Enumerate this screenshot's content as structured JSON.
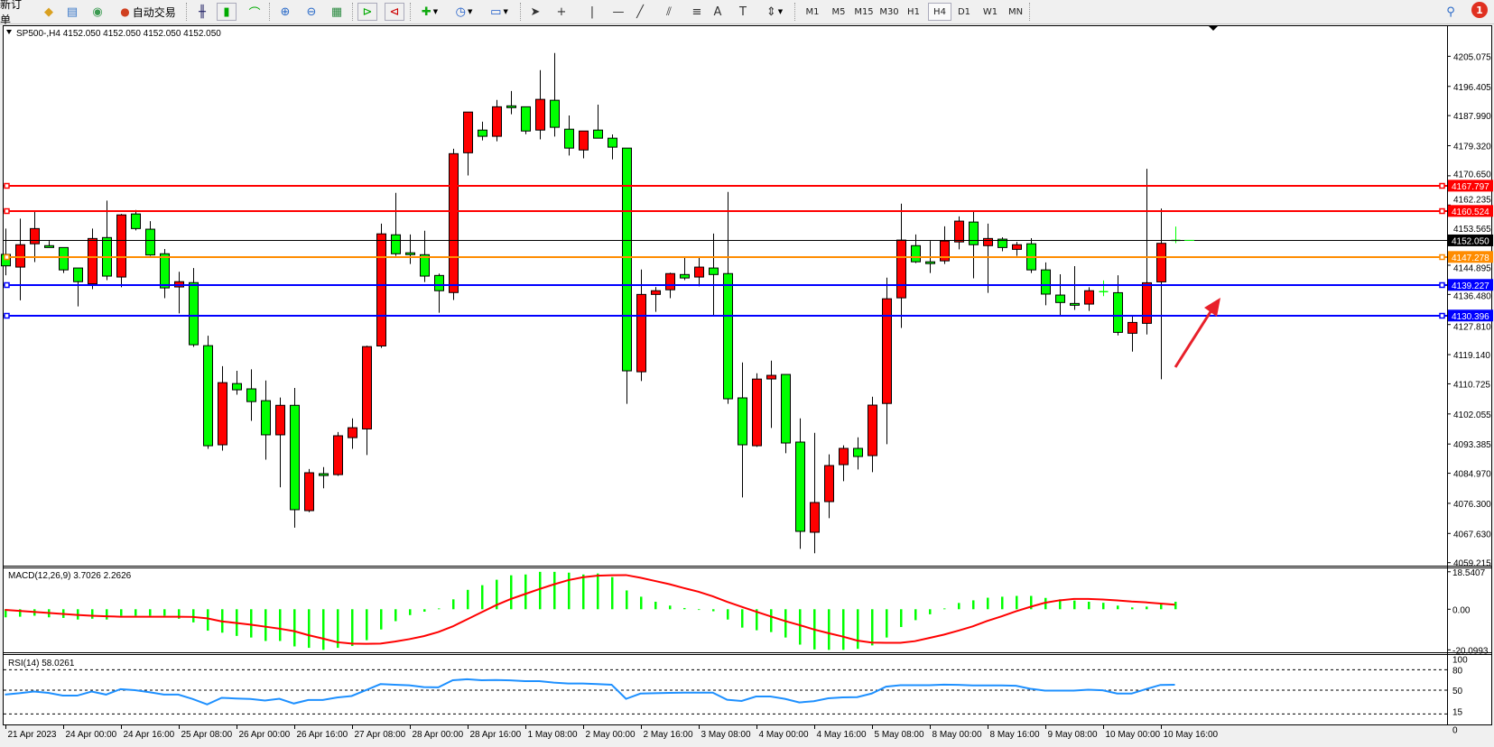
{
  "toolbar": {
    "new_order_label": "新订单",
    "auto_trading_label": "自动交易",
    "icons": [
      "new-order-icon",
      "market-watch-icon",
      "data-window-icon",
      "signals-icon",
      "auto-trading-icon",
      "bar-chart-icon",
      "candlestick-icon",
      "line-chart-icon",
      "zoom-in-icon",
      "zoom-out-icon",
      "tile-windows-icon",
      "auto-scroll-icon",
      "chart-shift-icon",
      "indicators-icon",
      "periods-icon",
      "templates-icon",
      "cursor-icon",
      "crosshair-icon",
      "vertical-line-icon",
      "horizontal-line-icon",
      "trendline-icon",
      "equidistant-channel-icon",
      "fibonacci-icon",
      "text-icon",
      "text-label-icon",
      "arrows-icon",
      "search-icon",
      "notification-icon"
    ],
    "timeframes": [
      "M1",
      "M5",
      "M15",
      "M30",
      "H1",
      "H4",
      "D1",
      "W1",
      "MN"
    ],
    "active_timeframe": "H4",
    "notification_count": "1"
  },
  "chart_title": "SP500-,H4  4152.050 4152.050 4152.050 4152.050",
  "colors": {
    "bull": "#ff0000",
    "bear": "#00ff00",
    "macd_hist": "#00ff00",
    "macd_signal": "#ff0000",
    "rsi": "#1e90ff",
    "resistance": "#ff0000",
    "pivot": "#ff8c00",
    "support": "#0000ff",
    "bid": "#000000",
    "arrow": "#e8202a"
  },
  "chart_data": {
    "type": "candlestick",
    "symbol": "SP500-",
    "timeframe": "H4",
    "ylim": [
      4059.215,
      4205.075
    ],
    "price_axis": {
      "ticks": [
        "4205.075",
        "4196.405",
        "4187.990",
        "4179.320",
        "4170.650",
        "4162.235",
        "4153.565",
        "4144.895",
        "4136.480",
        "4127.810",
        "4119.140",
        "4110.725",
        "4102.055",
        "4093.385",
        "4084.970",
        "4076.300",
        "4067.630",
        "4059.215"
      ]
    },
    "time_axis": {
      "labels": [
        "21 Apr 2023",
        "24 Apr 00:00",
        "24 Apr 16:00",
        "25 Apr 08:00",
        "26 Apr 00:00",
        "26 Apr 16:00",
        "27 Apr 08:00",
        "28 Apr 00:00",
        "28 Apr 16:00",
        "1 May 08:00",
        "2 May 00:00",
        "2 May 16:00",
        "3 May 08:00",
        "4 May 00:00",
        "4 May 16:00",
        "5 May 08:00",
        "8 May 00:00",
        "8 May 16:00",
        "9 May 08:00",
        "10 May 00:00",
        "10 May 16:00"
      ],
      "label_every_n_bars": 4
    },
    "ohlc_columns": [
      "open",
      "high",
      "low",
      "close"
    ],
    "candles": [
      [
        4148.02,
        4155.45,
        4142.0,
        4144.71
      ],
      [
        4144.35,
        4158.31,
        4134.78,
        4150.8
      ],
      [
        4151.07,
        4160.28,
        4145.79,
        4155.45
      ],
      [
        4150.53,
        4151.87,
        4149.99,
        4149.99
      ],
      [
        4149.99,
        4149.99,
        4142.65,
        4143.55
      ],
      [
        4144.09,
        4144.09,
        4133.03,
        4140.15
      ],
      [
        4139.52,
        4155.45,
        4138.0,
        4152.59
      ],
      [
        4152.86,
        4163.5,
        4140.6,
        4141.76
      ],
      [
        4141.49,
        4159.66,
        4138.54,
        4159.39
      ],
      [
        4159.66,
        4160.82,
        4154.91,
        4155.45
      ],
      [
        4155.27,
        4157.6,
        4147.58,
        4147.84
      ],
      [
        4148.2,
        4149.55,
        4135.41,
        4138.36
      ],
      [
        4138.63,
        4143.01,
        4131.02,
        4140.15
      ],
      [
        4139.88,
        4144.09,
        4121.36,
        4121.99
      ],
      [
        4121.72,
        4124.58,
        4092.01,
        4092.9
      ],
      [
        4093.17,
        4115.81,
        4091.47,
        4111.07
      ],
      [
        4110.8,
        4114.47,
        4107.58,
        4109.01
      ],
      [
        4109.28,
        4114.92,
        4100.06,
        4105.61
      ],
      [
        4105.88,
        4111.7,
        4088.88,
        4096.04
      ],
      [
        4096.04,
        4106.77,
        4080.91,
        4104.54
      ],
      [
        4104.54,
        4109.55,
        4069.3,
        4074.47
      ],
      [
        4074.2,
        4086.19,
        4073.75,
        4085.12
      ],
      [
        4084.85,
        4086.73,
        4080.64,
        4084.31
      ],
      [
        4084.58,
        4096.84,
        4084.22,
        4095.77
      ],
      [
        4095.23,
        4100.78,
        4092.01,
        4098.09
      ],
      [
        4097.73,
        4121.72,
        4090.22,
        4121.45
      ],
      [
        4121.63,
        4156.88,
        4121.09,
        4153.93
      ],
      [
        4153.66,
        4165.74,
        4147.58,
        4148.2
      ],
      [
        4148.47,
        4153.75,
        4145.25,
        4147.93
      ],
      [
        4147.93,
        4154.82,
        4140.06,
        4141.76
      ],
      [
        4141.94,
        4142.48,
        4131.2,
        4137.55
      ],
      [
        4137.02,
        4178.45,
        4134.87,
        4177.02
      ],
      [
        4177.28,
        4189.01,
        4170.75,
        4189.01
      ],
      [
        4183.82,
        4186.23,
        4180.86,
        4182.03
      ],
      [
        4182.03,
        4192.5,
        4180.59,
        4190.53
      ],
      [
        4190.8,
        4195.09,
        4188.38,
        4190.71
      ],
      [
        4190.53,
        4190.53,
        4182.65,
        4183.55
      ],
      [
        4183.82,
        4201.09,
        4181.13,
        4192.67
      ],
      [
        4192.41,
        4206.01,
        4181.94,
        4184.62
      ],
      [
        4184.08,
        4188.02,
        4176.48,
        4178.63
      ],
      [
        4178.09,
        4183.55,
        4175.67,
        4183.55
      ],
      [
        4183.82,
        4191.15,
        4181.49,
        4181.49
      ],
      [
        4181.49,
        4182.56,
        4175.4,
        4178.9
      ],
      [
        4178.63,
        4178.63,
        4104.98,
        4114.47
      ],
      [
        4114.2,
        4143.64,
        4111.52,
        4136.48
      ],
      [
        4136.48,
        4138.63,
        4131.47,
        4137.55
      ],
      [
        4137.82,
        4142.75,
        4135.41,
        4142.48
      ],
      [
        4142.21,
        4147.13,
        4140.6,
        4141.22
      ],
      [
        4141.49,
        4147.13,
        4138.81,
        4144.35
      ],
      [
        4144.09,
        4154.02,
        4130.58,
        4142.21
      ],
      [
        4142.48,
        4166.01,
        4104.98,
        4106.42
      ],
      [
        4106.68,
        4116.89,
        4078.01,
        4093.17
      ],
      [
        4092.9,
        4113.78,
        4092.56,
        4112.1
      ],
      [
        4112.13,
        4117.41,
        4098.02,
        4113.17
      ],
      [
        4113.43,
        4113.43,
        4090.74,
        4093.68
      ],
      [
        4093.95,
        4100.79,
        4063.2,
        4068.23
      ],
      [
        4067.97,
        4096.63,
        4061.91,
        4076.54
      ],
      [
        4076.8,
        4090.4,
        4072.04,
        4087.19
      ],
      [
        4087.45,
        4093.0,
        4082.69,
        4092.13
      ],
      [
        4092.13,
        4095.33,
        4086.07,
        4089.79
      ],
      [
        4090.05,
        4107.02,
        4085.29,
        4104.6
      ],
      [
        4105.07,
        4141.31,
        4093.34,
        4135.23
      ],
      [
        4135.5,
        4162.61,
        4126.82,
        4152.14
      ],
      [
        4150.53,
        4153.75,
        4145.52,
        4145.88
      ],
      [
        4145.88,
        4151.87,
        4142.65,
        4145.79
      ],
      [
        4146.15,
        4156.08,
        4145.25,
        4151.87
      ],
      [
        4151.6,
        4158.94,
        4149.46,
        4157.6
      ],
      [
        4157.33,
        4160.28,
        4141.13,
        4150.8
      ],
      [
        4150.53,
        4156.88,
        4136.93,
        4152.59
      ],
      [
        4152.41,
        4152.95,
        4148.92,
        4149.99
      ],
      [
        4149.46,
        4151.6,
        4147.58,
        4150.8
      ],
      [
        4151.07,
        4152.68,
        4142.65,
        4143.55
      ],
      [
        4143.55,
        4145.7,
        4133.35,
        4136.57
      ],
      [
        4136.3,
        4142.3,
        4130.58,
        4134.15
      ],
      [
        4133.88,
        4144.62,
        4132.01,
        4133.8
      ],
      [
        4133.7,
        4138.54,
        4131.74,
        4137.55
      ],
      [
        4137.28,
        4140.51,
        4136.0,
        4137.28
      ],
      [
        4136.98,
        4142.0,
        4124.68,
        4125.55
      ],
      [
        4125.29,
        4130.14,
        4120.01,
        4128.41
      ],
      [
        4128.15,
        4172.65,
        4124.94,
        4139.84
      ],
      [
        4140.1,
        4161.22,
        4112.04,
        4151.2
      ],
      [
        4152.05,
        4156.03,
        4151.26,
        4152.05
      ]
    ],
    "horizontal_lines": [
      {
        "price": 4167.797,
        "label": "4167.797",
        "kind": "resistance"
      },
      {
        "price": 4160.524,
        "label": "4160.524",
        "kind": "resistance"
      },
      {
        "price": 4152.05,
        "label": "4152.050",
        "kind": "bid"
      },
      {
        "price": 4147.278,
        "label": "4147.278",
        "kind": "pivot"
      },
      {
        "price": 4139.227,
        "label": "4139.227",
        "kind": "support"
      },
      {
        "price": 4130.396,
        "label": "4130.396",
        "kind": "support"
      }
    ],
    "macd": {
      "title": "MACD(12,26,9) 3.7026 2.2626",
      "axis_labels": [
        "18.5407",
        "0.00",
        "-20.0993"
      ],
      "ylim": [
        -20.0993,
        18.5407
      ],
      "main": [
        -4.0,
        -3.7,
        -3.2,
        -4.0,
        -4.3,
        -5.1,
        -4.7,
        -5.1,
        -3.2,
        -3.2,
        -3.2,
        -3.2,
        -4.7,
        -6.5,
        -10.6,
        -11.6,
        -13.2,
        -14.0,
        -15.7,
        -15.7,
        -18.4,
        -19.1,
        -20.1,
        -19.1,
        -18.2,
        -15.3,
        -10.0,
        -5.9,
        -2.9,
        -1.2,
        0.4,
        4.9,
        9.6,
        11.9,
        14.6,
        16.8,
        17.2,
        18.5,
        18.5,
        18.1,
        17.2,
        17.7,
        15.9,
        9.3,
        6.2,
        3.7,
        1.8,
        0.6,
        -0.2,
        -1.0,
        -5.1,
        -9.1,
        -10.4,
        -11.3,
        -14.0,
        -17.5,
        -19.9,
        -20.1,
        -20.1,
        -19.6,
        -17.9,
        -14.0,
        -8.8,
        -5.4,
        -2.5,
        0.4,
        3.1,
        4.4,
        5.7,
        6.2,
        6.6,
        6.6,
        5.6,
        4.9,
        4.3,
        3.7,
        3.2,
        1.8,
        0.9,
        1.3,
        2.9,
        3.7026
      ],
      "signal": [
        -0.3,
        -0.8,
        -1.3,
        -1.8,
        -2.3,
        -2.8,
        -3.2,
        -3.5,
        -3.7,
        -3.7,
        -3.7,
        -3.7,
        -3.7,
        -3.8,
        -4.5,
        -6.0,
        -6.8,
        -7.6,
        -8.6,
        -9.6,
        -10.8,
        -12.8,
        -14.5,
        -16.3,
        -17.0,
        -17.1,
        -17.0,
        -16.0,
        -14.8,
        -13.3,
        -11.3,
        -8.5,
        -5.0,
        -1.5,
        2.0,
        5.0,
        7.5,
        10.0,
        12.3,
        14.4,
        15.8,
        16.6,
        16.8,
        16.9,
        15.6,
        14.0,
        12.4,
        10.5,
        8.7,
        6.4,
        3.7,
        1.2,
        -1.2,
        -3.5,
        -5.8,
        -7.8,
        -10.0,
        -11.8,
        -13.5,
        -15.5,
        -16.5,
        -16.6,
        -16.6,
        -15.8,
        -14.2,
        -12.6,
        -10.6,
        -8.5,
        -5.8,
        -3.5,
        -1.0,
        1.2,
        3.2,
        4.4,
        5.1,
        5.1,
        4.8,
        4.4,
        3.8,
        3.4,
        2.8,
        2.2626
      ]
    },
    "rsi": {
      "title": "RSI(14) 58.0261",
      "axis_labels": [
        "100",
        "80",
        "50",
        "15",
        "0"
      ],
      "levels": [
        80,
        50,
        15
      ],
      "ylim": [
        0,
        100
      ],
      "values": [
        43.5,
        45.5,
        48,
        46,
        42,
        42,
        48,
        43.5,
        51.5,
        50,
        47,
        43.5,
        43.5,
        37,
        29,
        38.7,
        37.8,
        37,
        34.8,
        37.4,
        30.4,
        35.6,
        35.6,
        39.2,
        41.4,
        50.1,
        58.9,
        58,
        57.2,
        54.5,
        54.1,
        64.6,
        66,
        64.6,
        65,
        64.5,
        63.3,
        63.3,
        61.1,
        59.8,
        59.8,
        58.9,
        58,
        37.2,
        45,
        45.5,
        46,
        46.4,
        46.4,
        46.4,
        35.9,
        34.1,
        40.7,
        40.7,
        37.2,
        32,
        33.7,
        38,
        39.4,
        39.8,
        45,
        55.1,
        57.3,
        57.3,
        57.3,
        58.2,
        57.8,
        56.9,
        56.9,
        56.9,
        56.4,
        52,
        49.4,
        49.4,
        49.4,
        50.7,
        49.8,
        45,
        45,
        51.6,
        57.7,
        58.0261
      ]
    }
  }
}
